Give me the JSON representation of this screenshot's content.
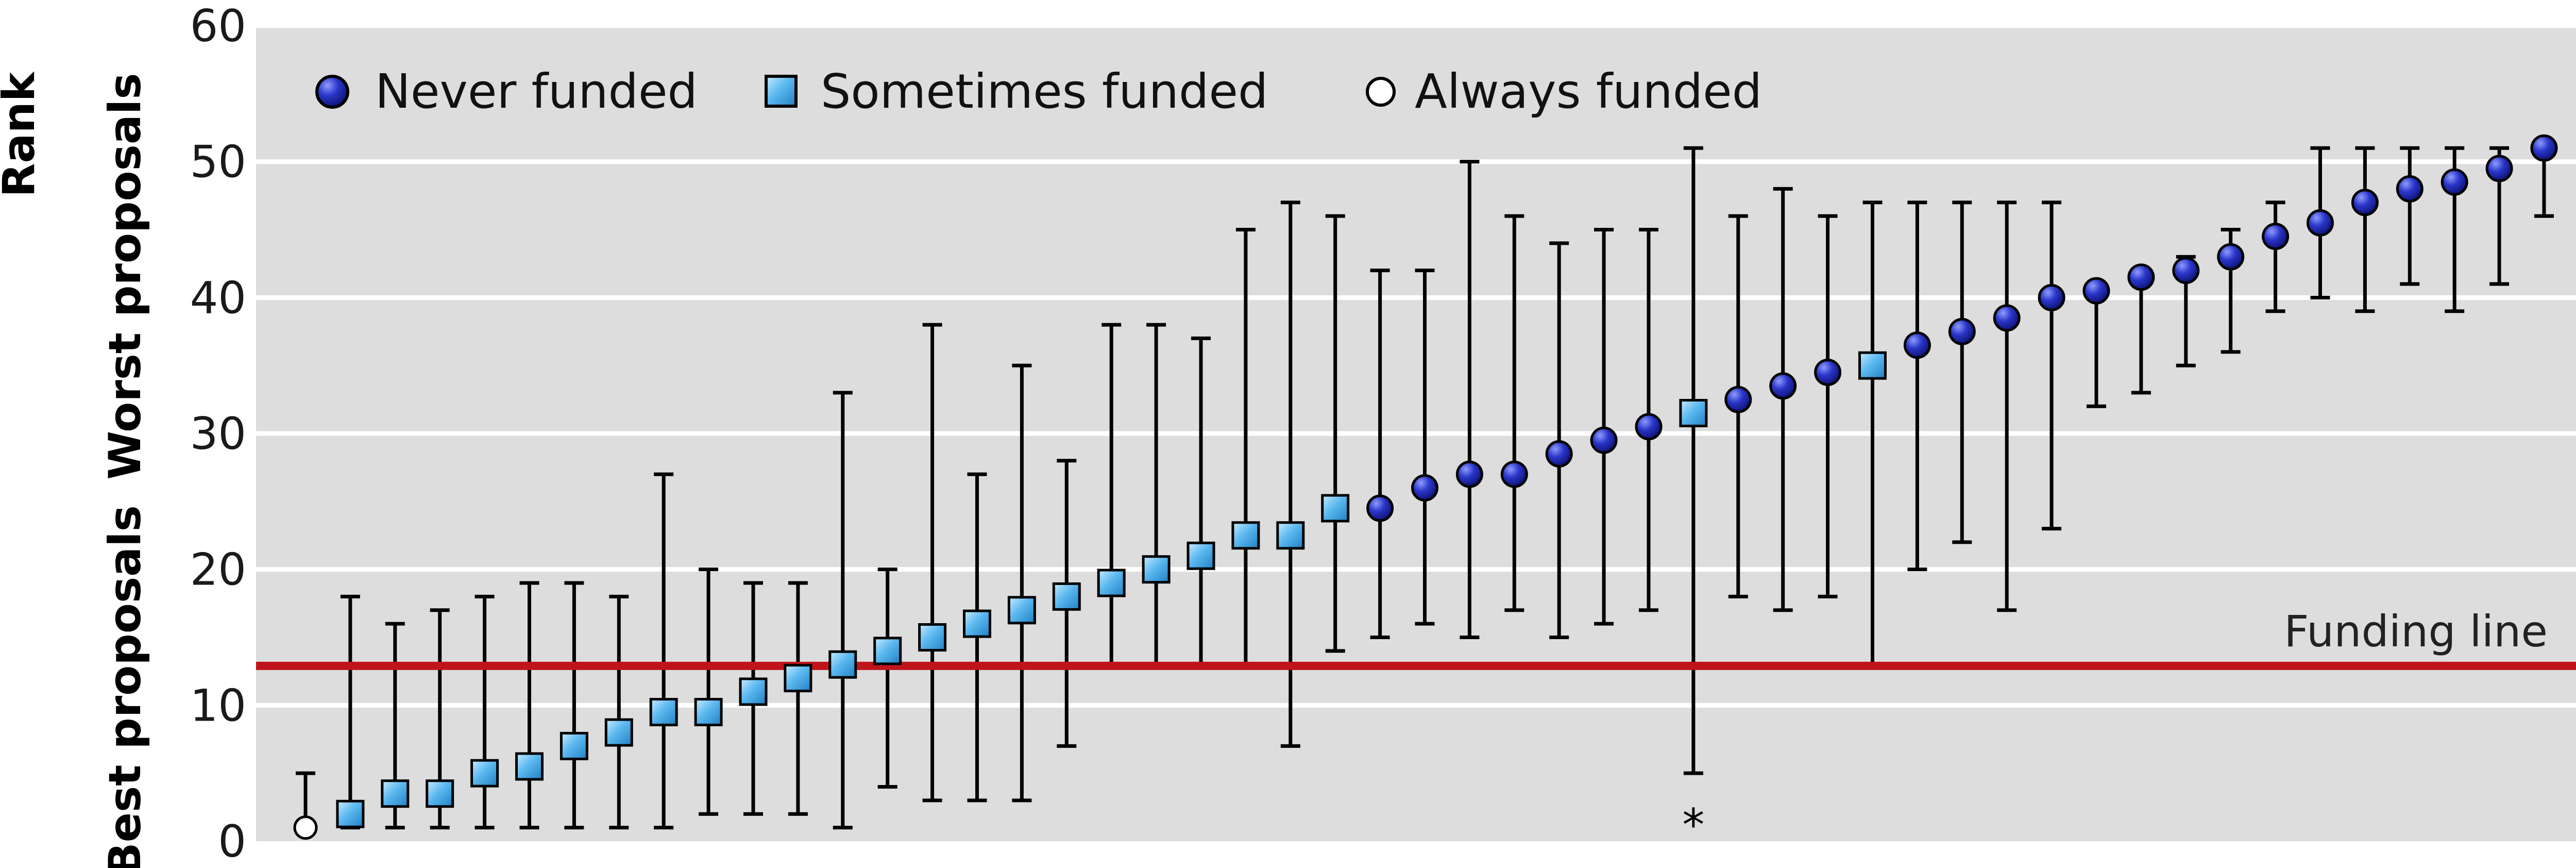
{
  "chart_data": {
    "type": "scatter",
    "title": "",
    "ylabel_rank": "Rank",
    "ylabel_worst": "Worst proposals",
    "ylabel_best": "Best proposals",
    "ylim": [
      0,
      60
    ],
    "yticks": [
      0,
      10,
      20,
      30,
      40,
      50,
      60
    ],
    "grid": true,
    "legend_position": "top-left",
    "legend": {
      "never": "Never funded",
      "sometimes": "Sometimes funded",
      "always": "Always funded"
    },
    "funding_line": {
      "value": 12.9,
      "label": "Funding line"
    },
    "note": {
      "symbol": "*",
      "proposal_index": 31
    },
    "colors": {
      "never": "#1c25b0",
      "sometimes": "#5bb8ef",
      "always": "#ffffff",
      "funding_line": "#c0141c",
      "panel": "#dddddd",
      "grid": "#ffffff"
    },
    "series": [
      {
        "key": "always",
        "rank": 1,
        "lo": 1,
        "hi": 5
      },
      {
        "key": "sometimes",
        "rank": 2,
        "lo": 1,
        "hi": 18
      },
      {
        "key": "sometimes",
        "rank": 3.5,
        "lo": 1,
        "hi": 16
      },
      {
        "key": "sometimes",
        "rank": 3.5,
        "lo": 1,
        "hi": 17
      },
      {
        "key": "sometimes",
        "rank": 5,
        "lo": 1,
        "hi": 18
      },
      {
        "key": "sometimes",
        "rank": 5.5,
        "lo": 1,
        "hi": 19
      },
      {
        "key": "sometimes",
        "rank": 7,
        "lo": 1,
        "hi": 19
      },
      {
        "key": "sometimes",
        "rank": 8,
        "lo": 1,
        "hi": 18
      },
      {
        "key": "sometimes",
        "rank": 9.5,
        "lo": 1,
        "hi": 27
      },
      {
        "key": "sometimes",
        "rank": 9.5,
        "lo": 2,
        "hi": 20
      },
      {
        "key": "sometimes",
        "rank": 11,
        "lo": 2,
        "hi": 19
      },
      {
        "key": "sometimes",
        "rank": 12,
        "lo": 2,
        "hi": 19
      },
      {
        "key": "sometimes",
        "rank": 13,
        "lo": 1,
        "hi": 33
      },
      {
        "key": "sometimes",
        "rank": 14,
        "lo": 4,
        "hi": 20
      },
      {
        "key": "sometimes",
        "rank": 15,
        "lo": 3,
        "hi": 38
      },
      {
        "key": "sometimes",
        "rank": 16,
        "lo": 3,
        "hi": 27
      },
      {
        "key": "sometimes",
        "rank": 17,
        "lo": 3,
        "hi": 35
      },
      {
        "key": "sometimes",
        "rank": 18,
        "lo": 7,
        "hi": 28
      },
      {
        "key": "sometimes",
        "rank": 19,
        "lo": 13,
        "hi": 38
      },
      {
        "key": "sometimes",
        "rank": 20,
        "lo": 13,
        "hi": 38
      },
      {
        "key": "sometimes",
        "rank": 21,
        "lo": 13,
        "hi": 37
      },
      {
        "key": "sometimes",
        "rank": 22.5,
        "lo": 13,
        "hi": 45
      },
      {
        "key": "sometimes",
        "rank": 22.5,
        "lo": 7,
        "hi": 47
      },
      {
        "key": "sometimes",
        "rank": 24.5,
        "lo": 14,
        "hi": 46
      },
      {
        "key": "never",
        "rank": 24.5,
        "lo": 15,
        "hi": 42
      },
      {
        "key": "never",
        "rank": 26,
        "lo": 16,
        "hi": 42
      },
      {
        "key": "never",
        "rank": 27,
        "lo": 15,
        "hi": 50
      },
      {
        "key": "never",
        "rank": 27,
        "lo": 17,
        "hi": 46
      },
      {
        "key": "never",
        "rank": 28.5,
        "lo": 15,
        "hi": 44
      },
      {
        "key": "never",
        "rank": 29.5,
        "lo": 16,
        "hi": 45
      },
      {
        "key": "never",
        "rank": 30.5,
        "lo": 17,
        "hi": 45
      },
      {
        "key": "sometimes",
        "rank": 31.5,
        "lo": 5,
        "hi": 51
      },
      {
        "key": "never",
        "rank": 32.5,
        "lo": 18,
        "hi": 46
      },
      {
        "key": "never",
        "rank": 33.5,
        "lo": 17,
        "hi": 48
      },
      {
        "key": "never",
        "rank": 34.5,
        "lo": 18,
        "hi": 46
      },
      {
        "key": "sometimes",
        "rank": 35,
        "lo": 13,
        "hi": 47
      },
      {
        "key": "never",
        "rank": 36.5,
        "lo": 20,
        "hi": 47
      },
      {
        "key": "never",
        "rank": 37.5,
        "lo": 22,
        "hi": 47
      },
      {
        "key": "never",
        "rank": 38.5,
        "lo": 17,
        "hi": 47
      },
      {
        "key": "never",
        "rank": 40,
        "lo": 23,
        "hi": 47
      },
      {
        "key": "never",
        "rank": 40.5,
        "lo": 32,
        "hi": 41
      },
      {
        "key": "never",
        "rank": 41.5,
        "lo": 33,
        "hi": 42
      },
      {
        "key": "never",
        "rank": 42,
        "lo": 35,
        "hi": 43
      },
      {
        "key": "never",
        "rank": 43,
        "lo": 36,
        "hi": 45
      },
      {
        "key": "never",
        "rank": 44.5,
        "lo": 39,
        "hi": 47
      },
      {
        "key": "never",
        "rank": 45.5,
        "lo": 40,
        "hi": 51
      },
      {
        "key": "never",
        "rank": 47,
        "lo": 39,
        "hi": 51
      },
      {
        "key": "never",
        "rank": 48,
        "lo": 41,
        "hi": 51
      },
      {
        "key": "never",
        "rank": 48.5,
        "lo": 39,
        "hi": 51
      },
      {
        "key": "never",
        "rank": 49.5,
        "lo": 41,
        "hi": 51
      },
      {
        "key": "never",
        "rank": 51,
        "lo": 46,
        "hi": 51
      }
    ]
  }
}
